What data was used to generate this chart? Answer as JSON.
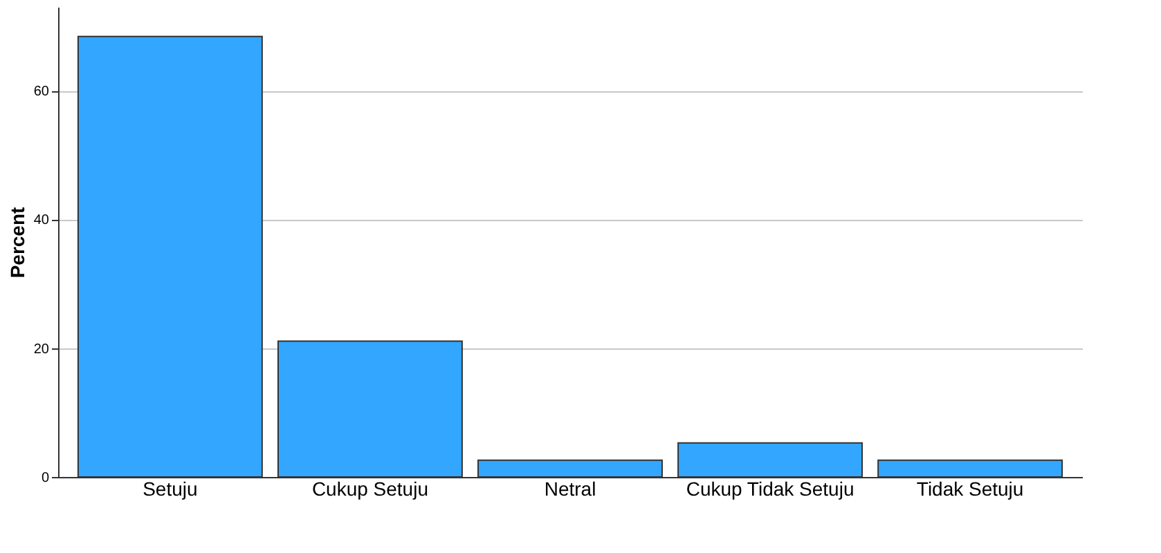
{
  "chart_data": {
    "type": "bar",
    "ylabel": "Percent",
    "categories": [
      "Setuju",
      "Cukup Setuju",
      "Netral",
      "Cukup Tidak Setuju",
      "Tidak Setuju"
    ],
    "values": [
      68.4,
      21.1,
      2.6,
      5.3,
      2.6
    ],
    "color": "#33a6ff",
    "ylim": [
      0,
      73
    ],
    "yticks": [
      0,
      20,
      40,
      60
    ],
    "grid": "y"
  }
}
